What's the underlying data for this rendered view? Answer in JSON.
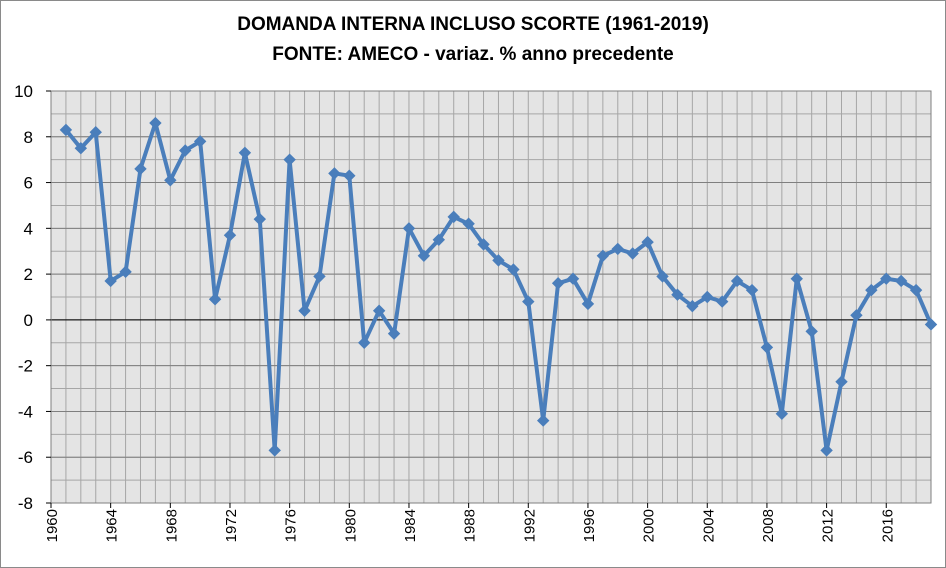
{
  "chart_data": {
    "type": "line",
    "title": "DOMANDA INTERNA INCLUSO SCORTE (1961-2019)",
    "subtitle": "FONTE: AMECO - variaz. % anno precedente",
    "xlabel": "",
    "ylabel": "",
    "ylim": [
      -8,
      10
    ],
    "xlim": [
      1960,
      2019
    ],
    "y_ticks": [
      10,
      8,
      6,
      4,
      2,
      0,
      -2,
      -4,
      -6,
      -8
    ],
    "x_ticks": [
      1960,
      1964,
      1968,
      1972,
      1976,
      1980,
      1984,
      1988,
      1992,
      1996,
      2000,
      2004,
      2008,
      2012,
      2016
    ],
    "grid": true,
    "legend": "none",
    "series": [
      {
        "color": "#4a7ebb",
        "marker": "diamond",
        "x": [
          1961,
          1962,
          1963,
          1964,
          1965,
          1966,
          1967,
          1968,
          1969,
          1970,
          1971,
          1972,
          1973,
          1974,
          1975,
          1976,
          1977,
          1978,
          1979,
          1980,
          1981,
          1982,
          1983,
          1984,
          1985,
          1986,
          1987,
          1988,
          1989,
          1990,
          1991,
          1992,
          1993,
          1994,
          1995,
          1996,
          1997,
          1998,
          1999,
          2000,
          2001,
          2002,
          2003,
          2004,
          2005,
          2006,
          2007,
          2008,
          2009,
          2010,
          2011,
          2012,
          2013,
          2014,
          2015,
          2016,
          2017,
          2018,
          2019
        ],
        "values": [
          8.3,
          7.5,
          8.2,
          1.7,
          2.1,
          6.6,
          8.6,
          6.1,
          7.4,
          7.8,
          0.9,
          3.7,
          7.3,
          4.4,
          -5.7,
          7.0,
          0.4,
          1.9,
          6.4,
          6.3,
          -1.0,
          0.4,
          -0.6,
          4.0,
          2.8,
          3.5,
          4.5,
          4.2,
          3.3,
          2.6,
          2.2,
          0.8,
          -4.4,
          1.6,
          1.8,
          0.7,
          2.8,
          3.1,
          2.9,
          3.4,
          1.9,
          1.1,
          0.6,
          1.0,
          0.8,
          1.7,
          1.3,
          -1.2,
          -4.1,
          1.8,
          -0.5,
          -5.7,
          -2.7,
          0.2,
          1.3,
          1.8,
          1.7,
          1.3,
          -0.2
        ]
      }
    ]
  }
}
